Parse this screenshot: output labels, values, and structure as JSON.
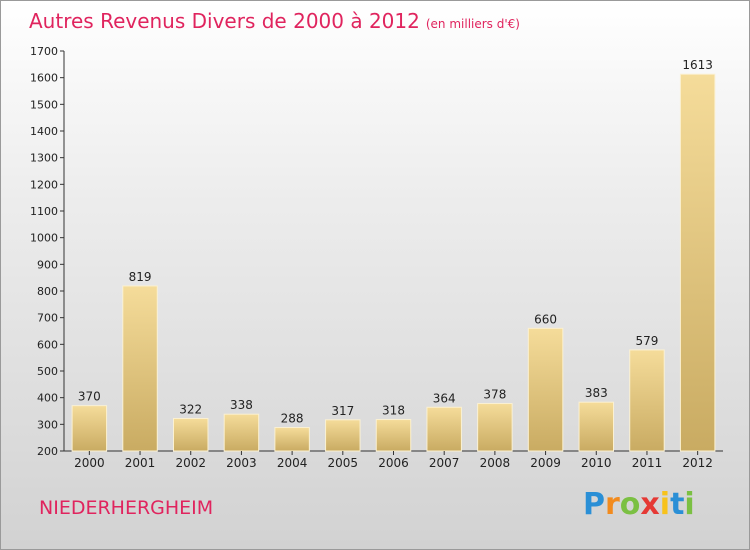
{
  "chart_data": {
    "type": "bar",
    "title": "Autres Revenus Divers de 2000 à 2012",
    "subtitle": "(en milliers d'€)",
    "categories": [
      "2000",
      "2001",
      "2002",
      "2003",
      "2004",
      "2005",
      "2006",
      "2007",
      "2008",
      "2009",
      "2010",
      "2011",
      "2012"
    ],
    "values": [
      370,
      819,
      322,
      338,
      288,
      317,
      318,
      364,
      378,
      660,
      383,
      579,
      1613
    ],
    "ylim": [
      200,
      1700
    ],
    "yticks": [
      200,
      300,
      400,
      500,
      600,
      700,
      800,
      900,
      1000,
      1100,
      1200,
      1300,
      1400,
      1500,
      1600,
      1700
    ],
    "grid": false,
    "bar_color_top": "#f5dc9a",
    "bar_color_bottom": "#c9ab62"
  },
  "footer": {
    "commune": "NIEDERHERGHEIM",
    "logo_letters": [
      {
        "char": "P",
        "color": "#2a8fd6"
      },
      {
        "char": "r",
        "color": "#f28b1e"
      },
      {
        "char": "o",
        "color": "#7bc043"
      },
      {
        "char": "x",
        "color": "#e53935"
      },
      {
        "char": "i",
        "color": "#f7c21b"
      },
      {
        "char": "t",
        "color": "#2a8fd6"
      },
      {
        "char": "i",
        "color": "#7bc043"
      }
    ]
  },
  "colors": {
    "title": "#e0245e",
    "axis": "#333333"
  }
}
